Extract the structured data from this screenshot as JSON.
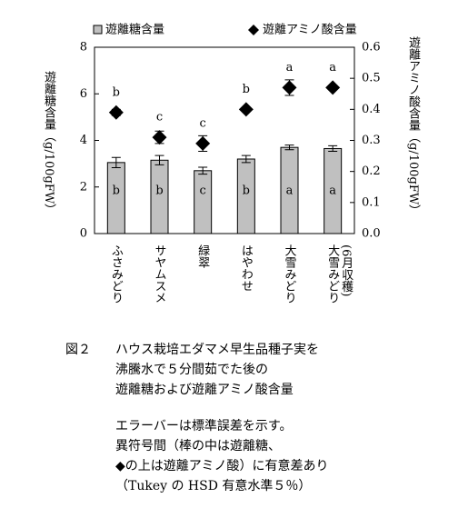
{
  "chart_data": {
    "type": "bar",
    "categories": [
      "ふさみどり",
      "サヤムスメ",
      "緑翠",
      "はやわせ",
      "大雪みどり",
      "大雪みどり\n(6月収穫)"
    ],
    "series": [
      {
        "name": "遊離糖含量",
        "color": "#c0c0c0",
        "values": [
          3.05,
          3.15,
          2.7,
          3.2,
          3.7,
          3.65
        ],
        "errors": [
          0.22,
          0.2,
          0.15,
          0.15,
          0.1,
          0.12
        ],
        "letters": [
          "b",
          "b",
          "c",
          "b",
          "a",
          "a"
        ]
      },
      {
        "name": "遊離アミノ酸含量",
        "color": "#000000",
        "axis": "y2",
        "values": [
          0.39,
          0.31,
          0.29,
          0.4,
          0.47,
          0.47
        ],
        "errors": [
          0.01,
          0.02,
          0.025,
          0.005,
          0.025,
          0.005
        ],
        "letters": [
          "b",
          "c",
          "c",
          "b",
          "a",
          "a"
        ]
      }
    ],
    "ylabel": "遊離糖含量（g/100gFW）",
    "y2label": "遊離アミノ酸含量（g/100gFW）",
    "ylim": [
      0,
      8
    ],
    "yticks": [
      0,
      2,
      4,
      6,
      8
    ],
    "y2lim": [
      0,
      0.6
    ],
    "y2ticks": [
      {
        "value": 0,
        "label": "0.0"
      },
      0.1,
      0.2,
      0.3,
      0.4,
      0.5,
      0.6
    ]
  },
  "caption": {
    "figure_label": "図２",
    "title_lines": [
      "ハウス栽培エダマメ早生品種子実を",
      "沸騰水で５分間茹でた後の",
      "遊離糖および遊離アミノ酸含量"
    ],
    "notes": [
      "エラーバーは標準誤差を示す。",
      "異符号間（棒の中は遊離糖、",
      "◆の上は遊離アミノ酸）に有意差あり",
      "（Tukey の HSD 有意水準５％）"
    ]
  }
}
